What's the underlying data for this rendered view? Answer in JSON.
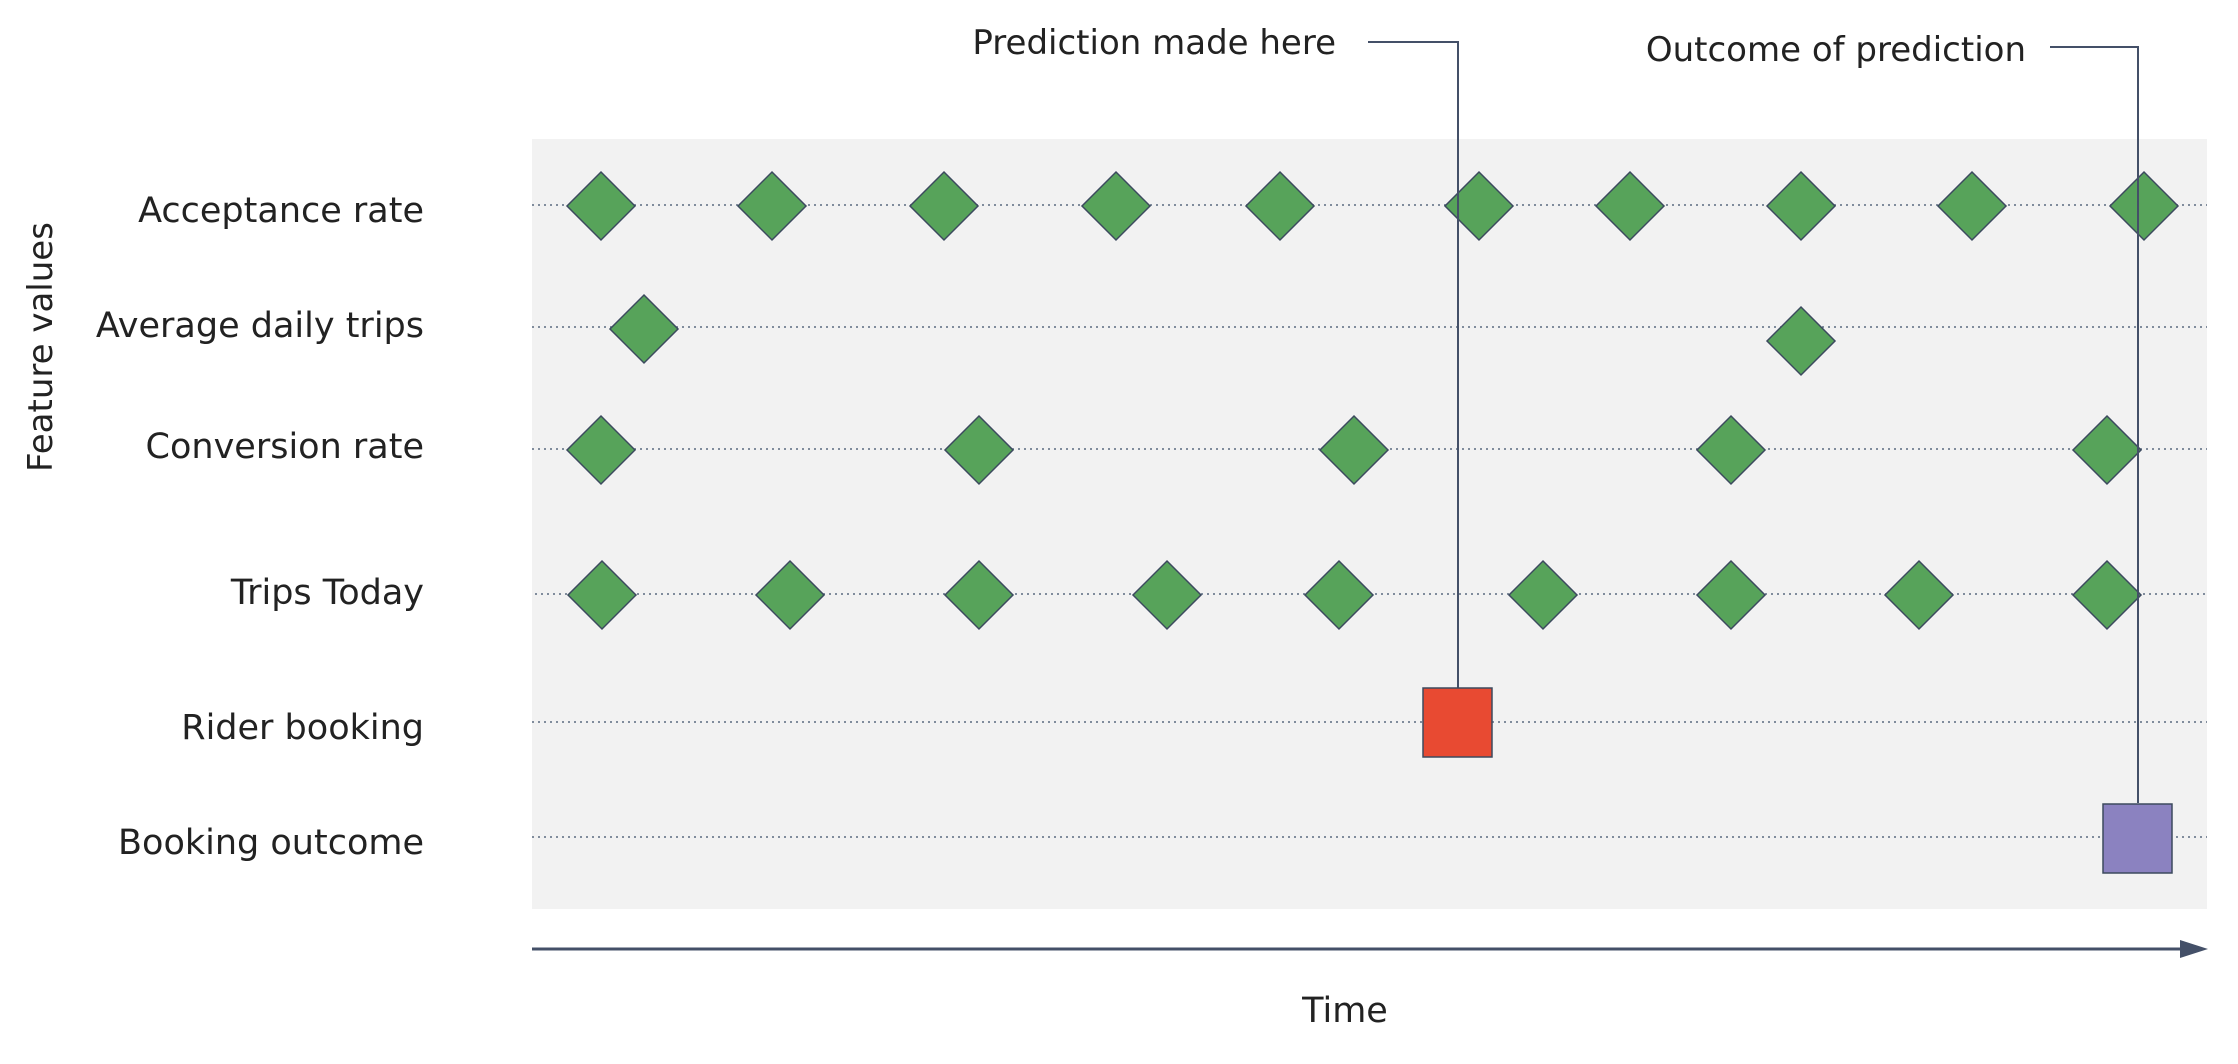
{
  "axis": {
    "y_label": "Feature values",
    "x_label": "Time"
  },
  "rows": [
    {
      "label": "Acceptance rate"
    },
    {
      "label": "Average daily trips"
    },
    {
      "label": "Conversion rate"
    },
    {
      "label": "Trips Today"
    },
    {
      "label": "Rider booking"
    },
    {
      "label": "Booking outcome"
    }
  ],
  "annotations": {
    "prediction": "Prediction made here",
    "outcome": "Outcome of prediction"
  },
  "colors": {
    "panel": "#f2f2f2",
    "feature_marker": "#57a35a",
    "marker_stroke": "#3c4a5e",
    "booking": "#e84a32",
    "outcome": "#8b82c0",
    "axis": "#445068",
    "row_line": "#5a6a80"
  },
  "icons": {
    "feature": "diamond-marker",
    "booking": "square-marker-red",
    "outcome": "square-marker-purple"
  }
}
